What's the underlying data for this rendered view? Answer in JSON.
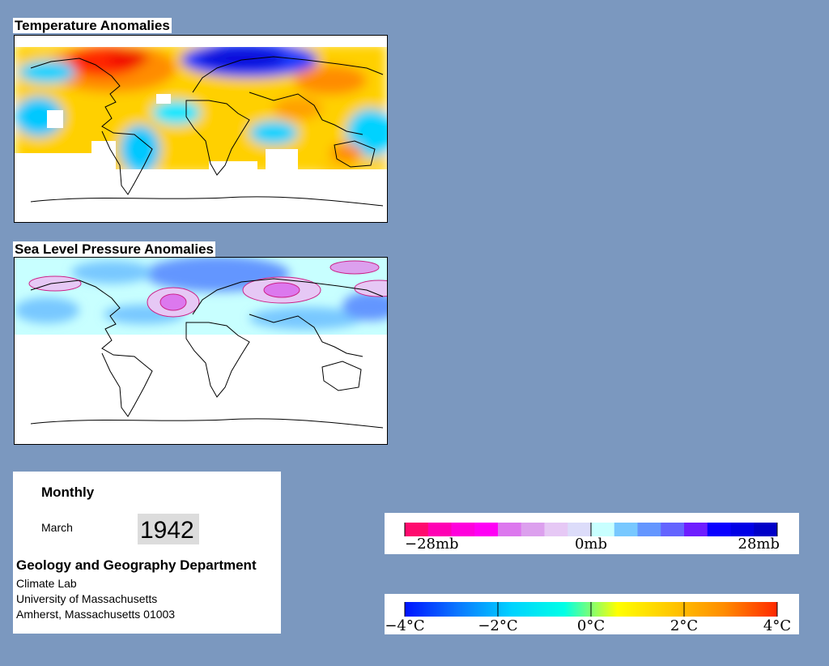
{
  "maps": {
    "temperature": {
      "title": "Temperature Anomalies"
    },
    "pressure": {
      "title": "Sea Level Pressure Anomalies"
    }
  },
  "info": {
    "period": "Monthly",
    "month": "March",
    "year": "1942",
    "department": "Geology and Geography Department",
    "lab": "Climate Lab",
    "university": "University of Massachusetts",
    "address": "Amherst, Massachusetts 01003"
  },
  "legends": {
    "pressure": {
      "labels": [
        "−28mb",
        "0mb",
        "28mb"
      ],
      "colors": [
        "#ff0a6e",
        "#ff00b4",
        "#ff00dc",
        "#ff00f5",
        "#dc78ee",
        "#dca0ee",
        "#e6c8f5",
        "#dcdcfa",
        "#c8ffff",
        "#78c8ff",
        "#6496ff",
        "#6464ff",
        "#6e1eff",
        "#0a00ff",
        "#0000e6",
        "#0000c8"
      ]
    },
    "temperature": {
      "labels": [
        "−4°C",
        "−2°C",
        "0°C",
        "2°C",
        "4°C"
      ],
      "gradient": [
        "#0014ff",
        "#0a78ff",
        "#00d2ff",
        "#00ffe6",
        "#ffff00",
        "#ffc800",
        "#ff8c00",
        "#ff2800"
      ]
    }
  },
  "colors": {
    "background": "#7b98bf",
    "year_box": "#dcdcdc"
  }
}
